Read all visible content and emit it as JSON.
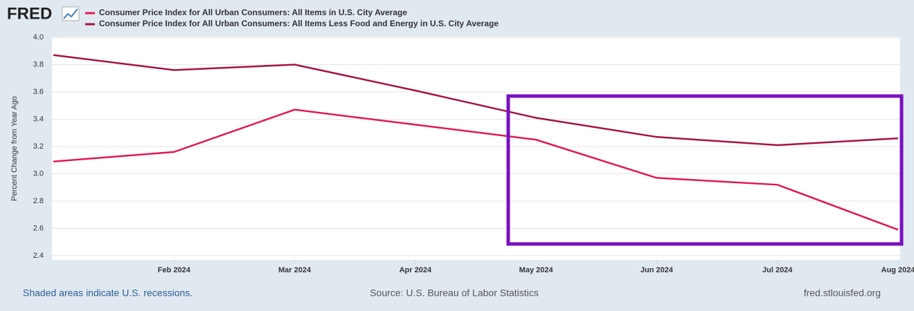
{
  "logo": "FRED",
  "chart_data": {
    "type": "line",
    "y_label": "Percent Change from Year Ago",
    "categories": [
      null,
      "Feb 2024",
      "Mar 2024",
      "Apr 2024",
      "May 2024",
      "Jun 2024",
      "Jul 2024",
      "Aug 2024"
    ],
    "series": [
      {
        "name": "Consumer Price Index for All Urban Consumers: All Items in U.S. City Average",
        "color": "#e3174f",
        "values": [
          3.09,
          3.16,
          3.47,
          3.36,
          3.25,
          2.97,
          2.92,
          2.59
        ]
      },
      {
        "name": "Consumer Price Index for All Urban Consumers: All Items Less Food and Energy in U.S. City Average",
        "color": "#a51140",
        "values": [
          3.87,
          3.76,
          3.8,
          3.61,
          3.41,
          3.27,
          3.21,
          3.26
        ]
      }
    ],
    "ylim": [
      2.4,
      4.0
    ],
    "yticks": [
      {
        "value": 2.4,
        "label": "2.4"
      },
      {
        "value": 2.6,
        "label": "2.6"
      },
      {
        "value": 2.8,
        "label": "2.8"
      },
      {
        "value": 3.0,
        "label": "3.0"
      },
      {
        "value": 3.2,
        "label": "3.2"
      },
      {
        "value": 3.4,
        "label": "3.4"
      },
      {
        "value": 3.6,
        "label": "3.6"
      },
      {
        "value": 3.8,
        "label": "3.8"
      },
      {
        "value": 4.0,
        "label": "4.0"
      }
    ],
    "grid": true
  },
  "footer": {
    "recessions": "Shaded areas indicate U.S. recessions.",
    "source": "Source: U.S. Bureau of Labor Statistics",
    "site": "fred.stlouisfed.org"
  }
}
